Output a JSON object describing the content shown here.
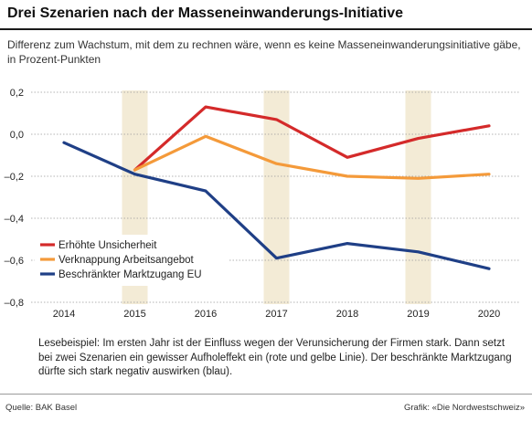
{
  "title": "Drei Szenarien nach der Masseneinwanderungs-Initiative",
  "subtitle": "Differenz zum Wachstum, mit dem zu rechnen wäre, wenn es keine Masseneinwanderungsinitiative gäbe, in Prozent-Punkten",
  "note": "Lesebeispiel: Im ersten Jahr ist der Einfluss wegen der Verunsicherung der Firmen stark. Dann setzt bei zwei Szenarien ein gewisser Aufholeffekt ein (rote und gelbe Linie). Der beschränkte Marktzugang dürfte sich stark negativ auswirken (blau).",
  "source": "Quelle: BAK Basel",
  "credit": "Grafik: «Die Nordwestschweiz»",
  "colors": {
    "stripe": "#f3ebd6",
    "grid": "#9a9a9a"
  },
  "chart_data": {
    "type": "line",
    "x": [
      "2014",
      "2015",
      "2016",
      "2017",
      "2018",
      "2019",
      "2020"
    ],
    "ylim": [
      -0.8,
      0.2
    ],
    "yticks": [
      0.2,
      0.0,
      -0.2,
      -0.4,
      -0.6,
      -0.8
    ],
    "ytick_labels": [
      "0,2",
      "0,0",
      "–0,2",
      "–0,4",
      "–0,6",
      "–0,8"
    ],
    "grid": "horizontal dashed",
    "legend_position": "lower-left",
    "series": [
      {
        "name": "Erhöhte Unsicherheit",
        "color": "#d42a2a",
        "values": [
          null,
          -0.17,
          0.13,
          0.07,
          -0.11,
          -0.02,
          0.04
        ]
      },
      {
        "name": "Verknappung Arbeitsangebot",
        "color": "#f49a3a",
        "values": [
          null,
          -0.17,
          -0.01,
          -0.14,
          -0.2,
          -0.21,
          -0.19
        ]
      },
      {
        "name": "Beschränkter Marktzugang EU",
        "color": "#1f3f86",
        "values": [
          -0.04,
          -0.19,
          -0.27,
          -0.59,
          -0.52,
          -0.56,
          -0.64
        ]
      }
    ]
  }
}
